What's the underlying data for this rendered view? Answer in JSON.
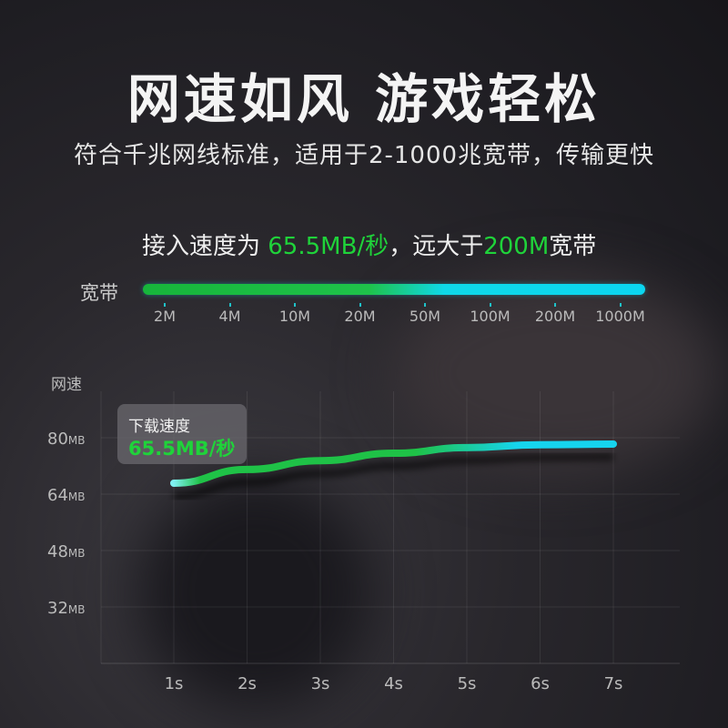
{
  "header": {
    "title": "网速如风 游戏轻松",
    "subtitle": "符合千兆网线标准，适用于2-1000兆宽带，传输更快"
  },
  "speed_statement": {
    "prefix": "接入速度为 ",
    "speed": "65.5MB/秒",
    "middle": "，远大于",
    "bandwidth": "200M",
    "suffix": "宽带"
  },
  "bandwidth_scale": {
    "label": "宽带",
    "ticks": [
      "2M",
      "4M",
      "10M",
      "20M",
      "50M",
      "100M",
      "200M",
      "1000M"
    ],
    "colors": {
      "start": "#1ec34a",
      "end": "#0bd6f0"
    }
  },
  "tooltip": {
    "title": "下载速度",
    "value": "65.5MB/秒"
  },
  "chart_data": {
    "type": "line",
    "ylabel": "网速",
    "x": [
      "1s",
      "2s",
      "3s",
      "4s",
      "5s",
      "6s",
      "7s"
    ],
    "y_ticks": [
      {
        "value": 80,
        "label": "80",
        "unit": "MB"
      },
      {
        "value": 64,
        "label": "64",
        "unit": "MB"
      },
      {
        "value": 48,
        "label": "48",
        "unit": "MB"
      },
      {
        "value": 32,
        "label": "32",
        "unit": "MB"
      }
    ],
    "ylim": [
      16,
      96
    ],
    "series": [
      {
        "values": [
          67.1,
          71.0,
          73.5,
          75.6,
          77.2,
          78.0,
          78.2
        ]
      }
    ],
    "grid": true,
    "colors": {
      "start": "#1fc247",
      "end": "#16d4ee"
    }
  }
}
